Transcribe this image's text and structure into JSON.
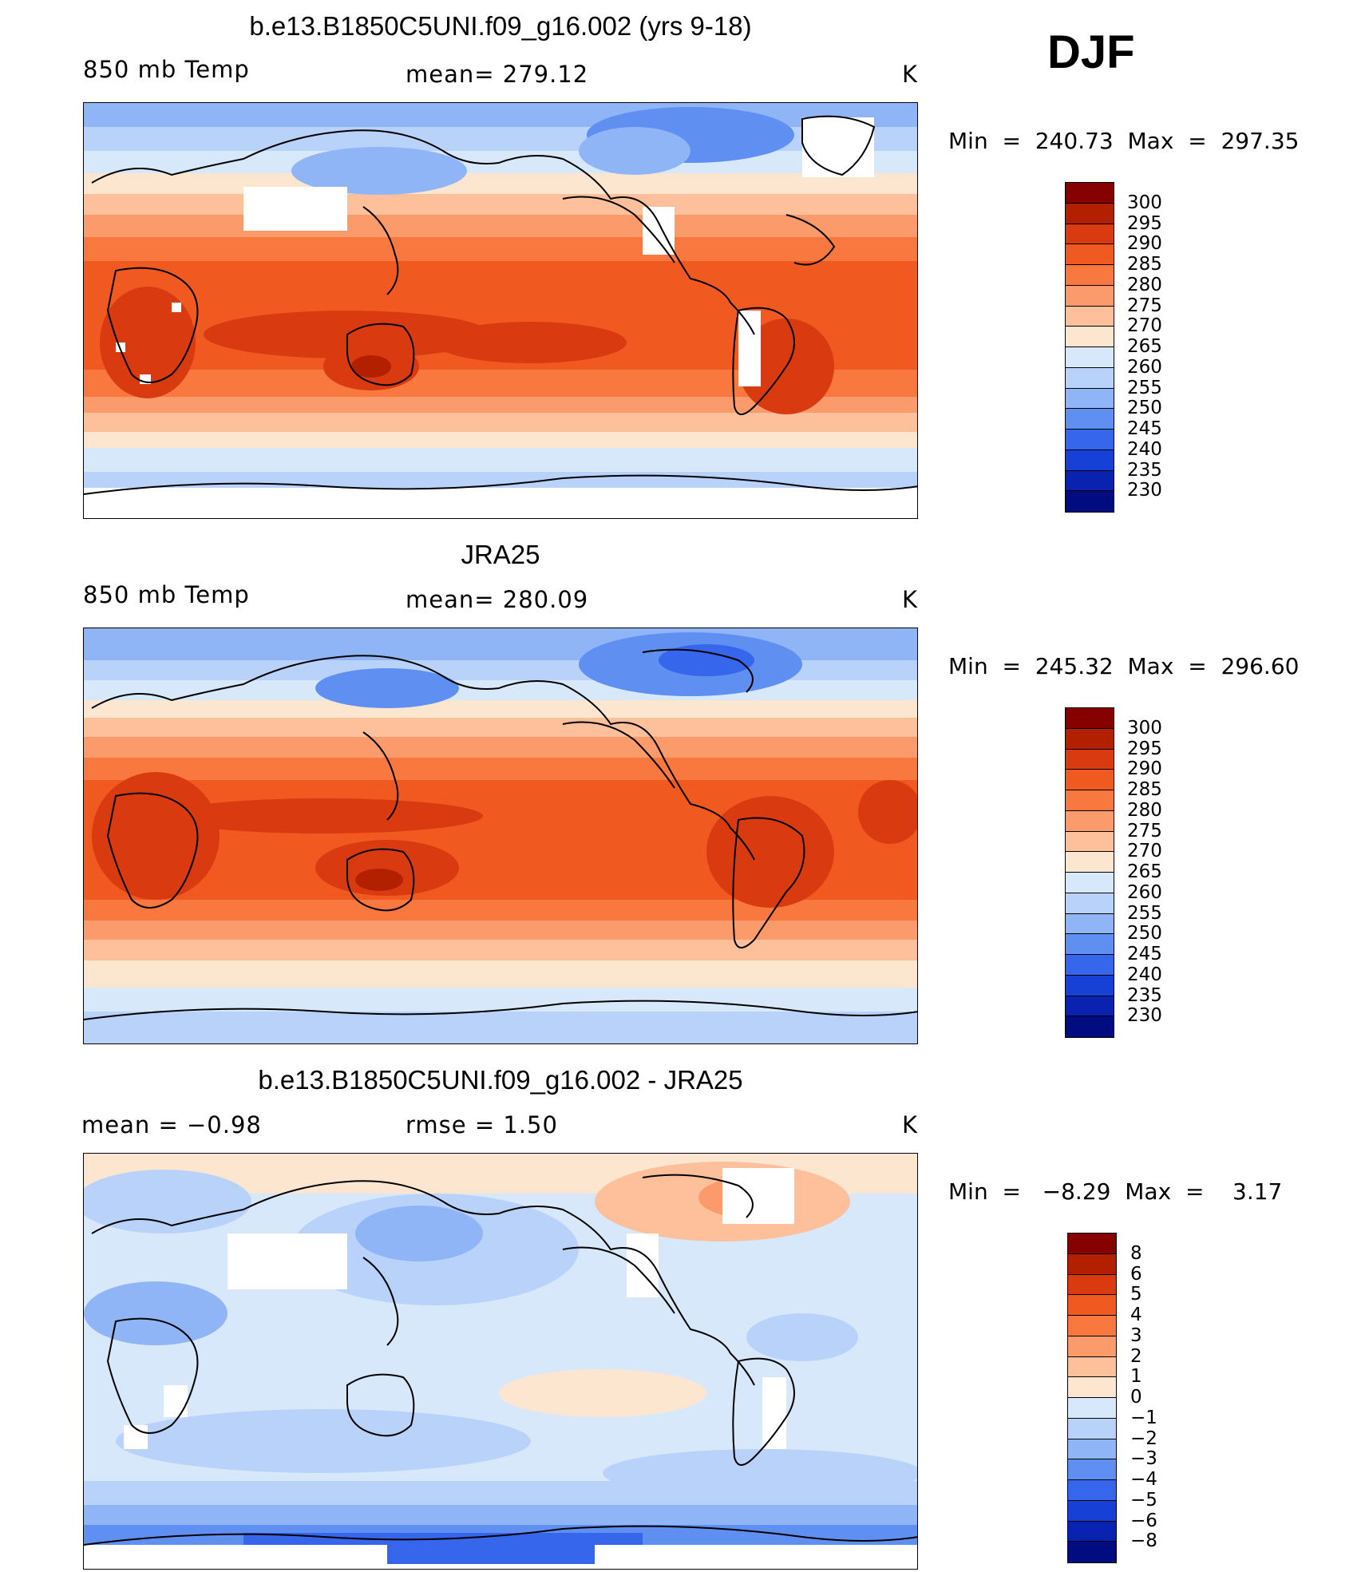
{
  "season": "DJF",
  "panels": [
    {
      "title": "b.e13.B1850C5UNI.f09_g16.002 (yrs 9-18)",
      "left_label": "850 mb Temp",
      "center_label": "mean= 279.12",
      "units": "K",
      "minmax": "Min  =  240.73  Max  =  297.35",
      "colorbar": {
        "labels": [
          "300",
          "295",
          "290",
          "285",
          "280",
          "275",
          "270",
          "265",
          "260",
          "255",
          "250",
          "245",
          "240",
          "235",
          "230"
        ],
        "colors": [
          "#870000",
          "#b32000",
          "#d93a10",
          "#f05a20",
          "#f87840",
          "#fb9a6a",
          "#fdc09a",
          "#fde6d0",
          "#d8e8fb",
          "#b8d2fa",
          "#8fb5f6",
          "#5f8ff0",
          "#3566ec",
          "#1741d6",
          "#0a22b0",
          "#000c80"
        ]
      }
    },
    {
      "title": "JRA25",
      "left_label": "850 mb Temp",
      "center_label": "mean= 280.09",
      "units": "K",
      "minmax": "Min  =  245.32  Max  =  296.60",
      "colorbar": {
        "labels": [
          "300",
          "295",
          "290",
          "285",
          "280",
          "275",
          "270",
          "265",
          "260",
          "255",
          "250",
          "245",
          "240",
          "235",
          "230"
        ],
        "colors": [
          "#870000",
          "#b32000",
          "#d93a10",
          "#f05a20",
          "#f87840",
          "#fb9a6a",
          "#fdc09a",
          "#fde6d0",
          "#d8e8fb",
          "#b8d2fa",
          "#8fb5f6",
          "#5f8ff0",
          "#3566ec",
          "#1741d6",
          "#0a22b0",
          "#000c80"
        ]
      }
    },
    {
      "title": "b.e13.B1850C5UNI.f09_g16.002 - JRA25",
      "left_label": "mean  =   −0.98",
      "center_label": "rmse  =    1.50",
      "units": "K",
      "minmax": "Min  =   −8.29  Max  =    3.17",
      "colorbar": {
        "labels": [
          "8",
          "6",
          "5",
          "4",
          "3",
          "2",
          "1",
          "0",
          "−1",
          "−2",
          "−3",
          "−4",
          "−5",
          "−6",
          "−8"
        ],
        "colors": [
          "#870000",
          "#b32000",
          "#d93a10",
          "#f05a20",
          "#f87840",
          "#fb9a6a",
          "#fdc09a",
          "#fde6d0",
          "#d8e8fb",
          "#b8d2fa",
          "#8fb5f6",
          "#5f8ff0",
          "#3566ec",
          "#1741d6",
          "#0a22b0",
          "#000c80"
        ]
      }
    }
  ]
}
